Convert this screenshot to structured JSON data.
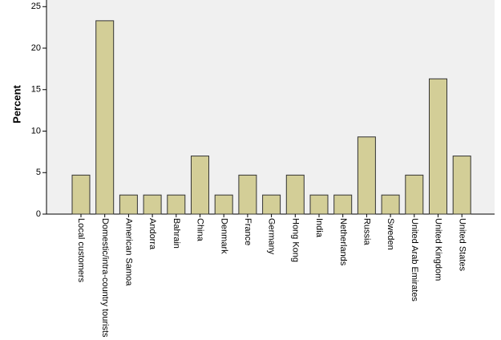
{
  "chart_data": {
    "type": "bar",
    "y_axis_label": "Percent",
    "categories": [
      "Local customers",
      "Domestic/intra-country tourists",
      "American Samoa",
      "Andorra",
      "Bahrain",
      "China",
      "Denmark",
      "France",
      "Germany",
      "Hong Kong",
      "India",
      "Netherlands",
      "Russia",
      "Sweden",
      "United Arab Emirates",
      "United Kingdom",
      "United States"
    ],
    "values": [
      4.7,
      23.3,
      2.3,
      2.3,
      2.3,
      7.0,
      2.3,
      4.7,
      2.3,
      4.7,
      2.3,
      2.3,
      9.3,
      2.3,
      4.7,
      16.3,
      7.0
    ],
    "color": "#d3ce97",
    "ylim": [
      0,
      25.8
    ],
    "yticks": [
      0,
      5,
      10,
      15,
      20,
      25
    ],
    "grid": false
  }
}
